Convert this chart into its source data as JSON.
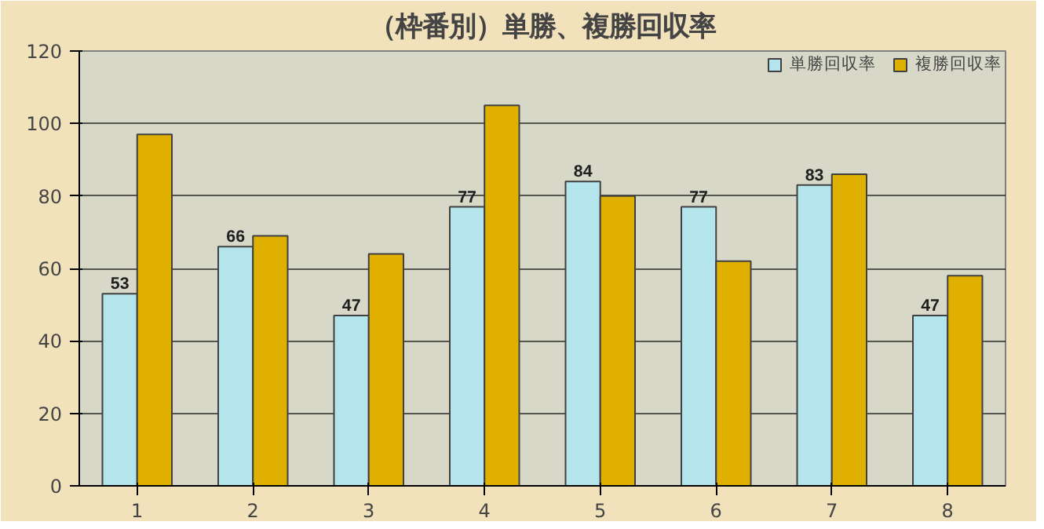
{
  "chart_data": {
    "type": "bar",
    "title": "（枠番別）単勝、複勝回収率",
    "categories": [
      "1",
      "2",
      "3",
      "4",
      "5",
      "6",
      "7",
      "8"
    ],
    "series": [
      {
        "name": "単勝回収率",
        "color": "#b4e4ec",
        "values": [
          53,
          66,
          47,
          77,
          84,
          77,
          83,
          47
        ],
        "value_labels": [
          "53",
          "66",
          "47",
          "77",
          "84",
          "77",
          "83",
          "47"
        ]
      },
      {
        "name": "複勝回収率",
        "color": "#e0b000",
        "values": [
          97,
          69,
          64,
          105,
          80,
          62,
          86,
          58
        ]
      }
    ],
    "ylim": [
      0,
      120
    ],
    "yticks": [
      0,
      20,
      40,
      60,
      80,
      100,
      120
    ],
    "grid": "y",
    "legend": "top right"
  }
}
